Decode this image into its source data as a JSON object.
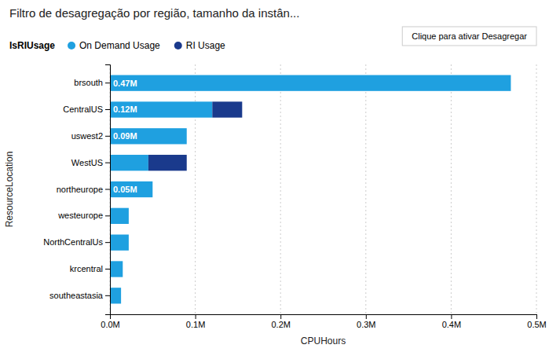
{
  "chart_data": {
    "type": "bar",
    "orientation": "horizontal",
    "stacked": true,
    "title": "Filtro de desagregação por região, tamanho da instân...",
    "xlabel": "CPUHours",
    "ylabel": "ResourceLocation",
    "legend_title": "IsRIUsage",
    "legend": "top",
    "annotations": [
      "Clique para ativar Desagregar"
    ],
    "categories": [
      "brsouth",
      "CentralUS",
      "uswest2",
      "WestUS",
      "northeurope",
      "westeurope",
      "NorthCentralUs",
      "krcentral",
      "southeastasia"
    ],
    "series": [
      {
        "name": "On Demand Usage",
        "color": "#1FA0E0",
        "values": [
          0.47,
          0.12,
          0.09,
          0.045,
          0.05,
          0.022,
          0.022,
          0.015,
          0.013
        ],
        "value_labels": [
          "0.47M",
          "0.12M",
          "0.09M",
          null,
          "0.05M",
          null,
          null,
          null,
          null
        ]
      },
      {
        "name": "RI Usage",
        "color": "#1A3A8C",
        "values": [
          0.0,
          0.035,
          0.0,
          0.045,
          0.0,
          0.0,
          0.0,
          0.0,
          0.0
        ]
      }
    ],
    "data_labels": true,
    "xlim": [
      0,
      0.5
    ],
    "xticks": [
      {
        "value": 0.0,
        "label": "0.0M"
      },
      {
        "value": 0.1,
        "label": "0.1M"
      },
      {
        "value": 0.2,
        "label": "0.2M"
      },
      {
        "value": 0.3,
        "label": "0.3M"
      },
      {
        "value": 0.4,
        "label": "0.4M"
      },
      {
        "value": 0.5,
        "label": "0.5M"
      }
    ],
    "grid": true
  }
}
